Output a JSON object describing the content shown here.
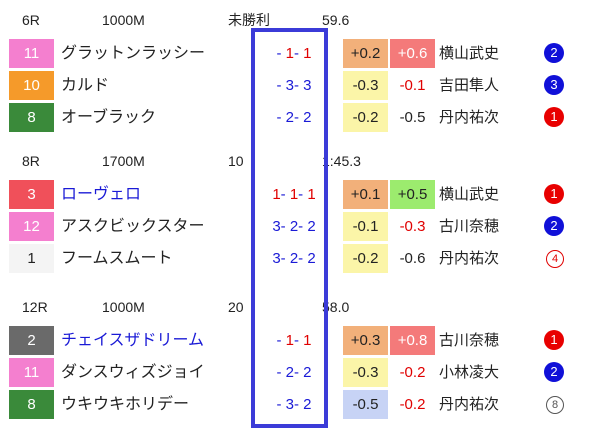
{
  "races": [
    {
      "race": "6R",
      "distance": "1000M",
      "grade": "未勝利",
      "time": "59.6",
      "entries": [
        {
          "num": "11",
          "num_color": "#f47fcf",
          "name": "グラットンラッシー",
          "name_link": false,
          "pass": [
            {
              "t": "- ",
              "c": "blue"
            },
            {
              "t": "1",
              "c": "red"
            },
            {
              "t": "- ",
              "c": "blue"
            },
            {
              "t": "1",
              "c": "red"
            }
          ],
          "diff1": "+0.2",
          "diff1_bg": "#f2b07a",
          "diff2": "+0.6",
          "diff2_bg": "#f47a7a",
          "diff2_color": "#ffffff",
          "jockey": "横山武史",
          "pop": "2",
          "pop_style": "filled",
          "pop_color": "#1010d8"
        },
        {
          "num": "10",
          "num_color": "#f59a2a",
          "name": "カルド",
          "name_link": false,
          "pass": [
            {
              "t": "- ",
              "c": "blue"
            },
            {
              "t": "3",
              "c": "blue"
            },
            {
              "t": "- ",
              "c": "blue"
            },
            {
              "t": "3",
              "c": "blue"
            }
          ],
          "diff1": "-0.3",
          "diff1_bg": "#fbf5a8",
          "diff2": "-0.1",
          "diff2_bg": "",
          "diff2_color": "#e00000",
          "jockey": "吉田隼人",
          "pop": "3",
          "pop_style": "filled",
          "pop_color": "#1010d8"
        },
        {
          "num": "8",
          "num_color": "#3a8a3a",
          "name": "オーブラック",
          "name_link": false,
          "pass": [
            {
              "t": "- ",
              "c": "blue"
            },
            {
              "t": "2",
              "c": "blue"
            },
            {
              "t": "- ",
              "c": "blue"
            },
            {
              "t": "2",
              "c": "blue"
            }
          ],
          "diff1": "-0.2",
          "diff1_bg": "#fbf5a8",
          "diff2": "-0.5",
          "diff2_bg": "",
          "diff2_color": "#222222",
          "jockey": "丹内祐次",
          "pop": "1",
          "pop_style": "filled",
          "pop_color": "#e80000"
        }
      ]
    },
    {
      "race": "8R",
      "distance": "1700M",
      "grade": "10",
      "time": "1:45.3",
      "entries": [
        {
          "num": "3",
          "num_color": "#f0505a",
          "name": "ローヴェロ",
          "name_link": true,
          "pass": [
            {
              "t": "1",
              "c": "red"
            },
            {
              "t": "- ",
              "c": "blue"
            },
            {
              "t": "1",
              "c": "red"
            },
            {
              "t": "- ",
              "c": "blue"
            },
            {
              "t": "1",
              "c": "red"
            }
          ],
          "diff1": "+0.1",
          "diff1_bg": "#f2b07a",
          "diff2": "+0.5",
          "diff2_bg": "#9ceb6e",
          "diff2_color": "#222222",
          "jockey": "横山武史",
          "pop": "1",
          "pop_style": "filled",
          "pop_color": "#e80000"
        },
        {
          "num": "12",
          "num_color": "#f47fcf",
          "name": "アスクビックスター",
          "name_link": false,
          "pass": [
            {
              "t": "3",
              "c": "blue"
            },
            {
              "t": "- ",
              "c": "blue"
            },
            {
              "t": "2",
              "c": "blue"
            },
            {
              "t": "- ",
              "c": "blue"
            },
            {
              "t": "2",
              "c": "blue"
            }
          ],
          "diff1": "-0.1",
          "diff1_bg": "#fbf5a8",
          "diff2": "-0.3",
          "diff2_bg": "",
          "diff2_color": "#e00000",
          "jockey": "古川奈穂",
          "pop": "2",
          "pop_style": "filled",
          "pop_color": "#1010d8"
        },
        {
          "num": "1",
          "num_color": "#f4f4f4",
          "name": "フームスムート",
          "name_link": false,
          "pass": [
            {
              "t": "3",
              "c": "blue"
            },
            {
              "t": "- ",
              "c": "blue"
            },
            {
              "t": "2",
              "c": "blue"
            },
            {
              "t": "- ",
              "c": "blue"
            },
            {
              "t": "2",
              "c": "blue"
            }
          ],
          "diff1": "-0.2",
          "diff1_bg": "#fbf5a8",
          "diff2": "-0.6",
          "diff2_bg": "",
          "diff2_color": "#222222",
          "jockey": "丹内祐次",
          "pop": "4",
          "pop_style": "circle-red",
          "pop_color": "#e00000"
        }
      ]
    },
    {
      "race": "12R",
      "distance": "1000M",
      "grade": "20",
      "time": "58.0",
      "entries": [
        {
          "num": "2",
          "num_color": "#6a6a6a",
          "name": "チェイスザドリーム",
          "name_link": true,
          "pass": [
            {
              "t": "- ",
              "c": "blue"
            },
            {
              "t": "1",
              "c": "red"
            },
            {
              "t": "- ",
              "c": "blue"
            },
            {
              "t": "1",
              "c": "red"
            }
          ],
          "diff1": "+0.3",
          "diff1_bg": "#f2b07a",
          "diff2": "+0.8",
          "diff2_bg": "#f47a7a",
          "diff2_color": "#ffffff",
          "jockey": "古川奈穂",
          "pop": "1",
          "pop_style": "filled",
          "pop_color": "#e80000"
        },
        {
          "num": "11",
          "num_color": "#f47fcf",
          "name": "ダンスウィズジョイ",
          "name_link": false,
          "pass": [
            {
              "t": "- ",
              "c": "blue"
            },
            {
              "t": "2",
              "c": "blue"
            },
            {
              "t": "- ",
              "c": "blue"
            },
            {
              "t": "2",
              "c": "blue"
            }
          ],
          "diff1": "-0.3",
          "diff1_bg": "#fbf5a8",
          "diff2": "-0.2",
          "diff2_bg": "",
          "diff2_color": "#e00000",
          "jockey": "小林凌大",
          "pop": "2",
          "pop_style": "filled",
          "pop_color": "#1010d8"
        },
        {
          "num": "8",
          "num_color": "#3a8a3a",
          "name": "ウキウキホリデー",
          "name_link": false,
          "pass": [
            {
              "t": "- ",
              "c": "blue"
            },
            {
              "t": "3",
              "c": "blue"
            },
            {
              "t": "- ",
              "c": "blue"
            },
            {
              "t": "2",
              "c": "blue"
            }
          ],
          "diff1": "-0.5",
          "diff1_bg": "#c7d3f5",
          "diff2": "-0.2",
          "diff2_bg": "",
          "diff2_color": "#e00000",
          "jockey": "丹内祐次",
          "pop": "8",
          "pop_style": "circle",
          "pop_color": "#555555"
        }
      ]
    }
  ]
}
